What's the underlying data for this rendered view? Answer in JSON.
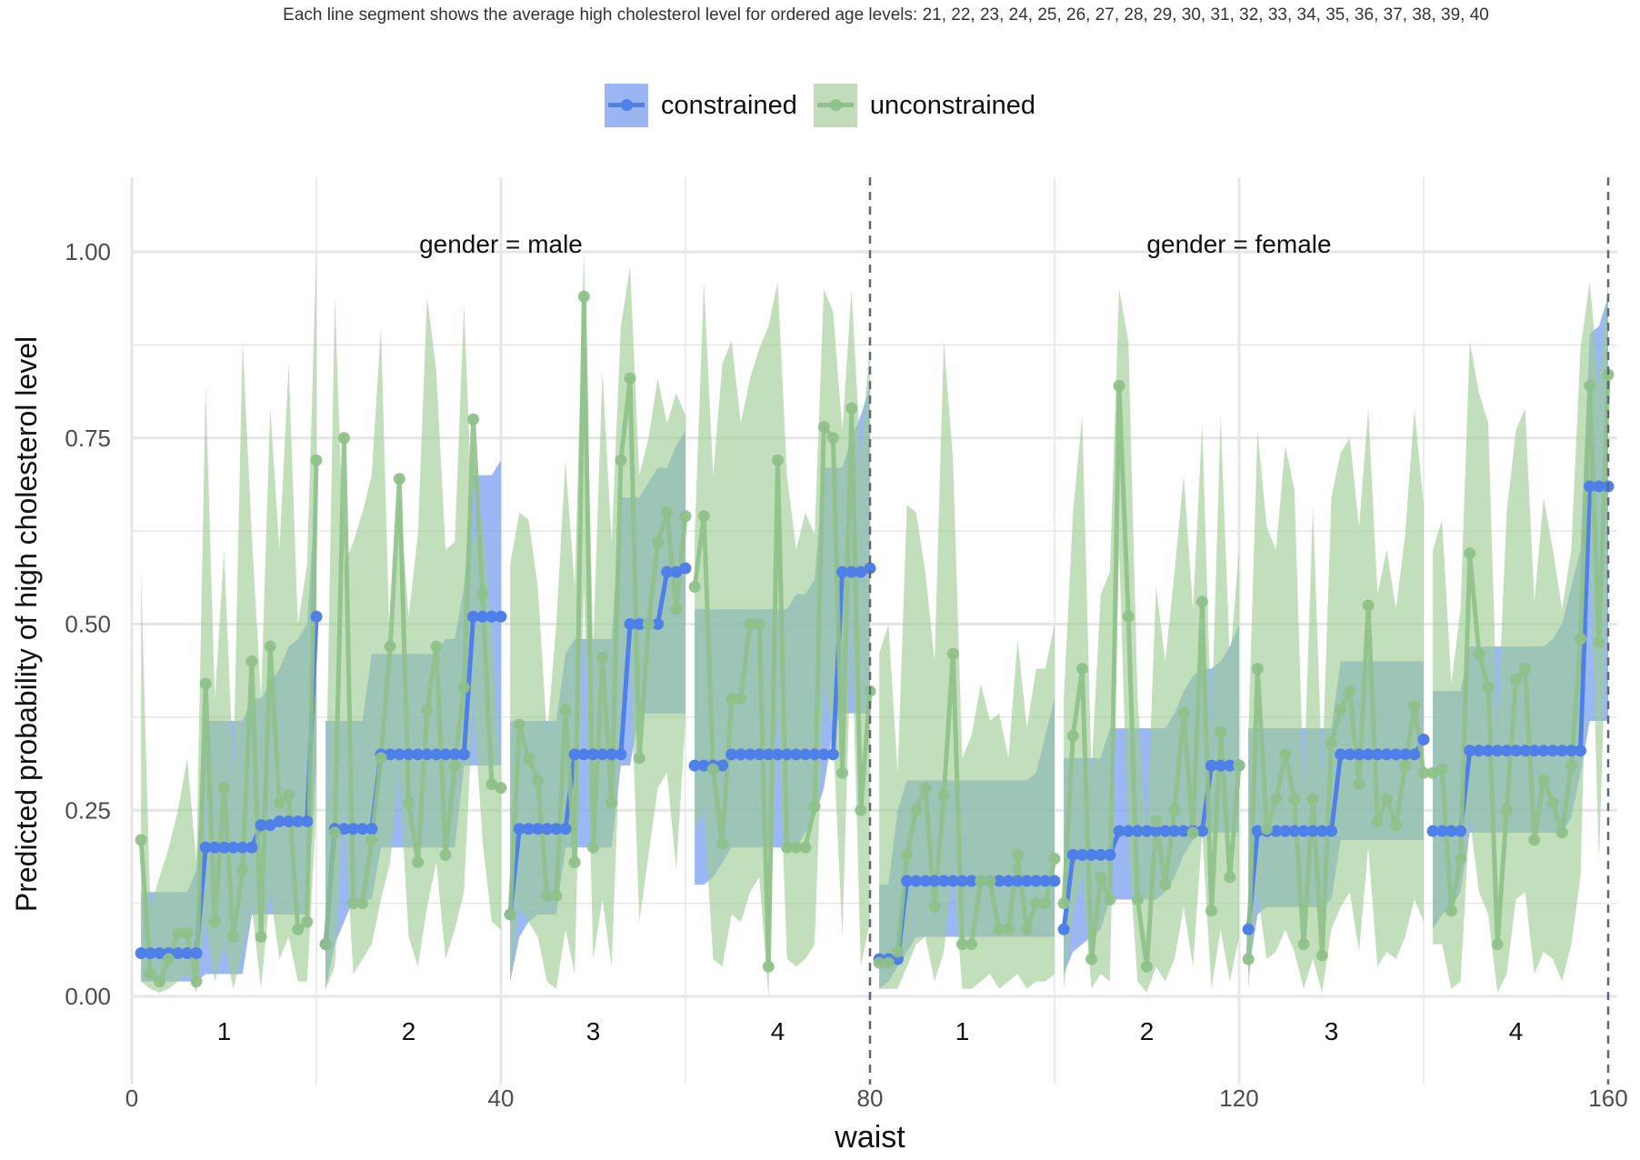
{
  "chart_data": {
    "type": "line",
    "title": "Each line segment shows the average high cholesterol level for ordered age levels: 21, 22, 23, 24, 25, 26, 27, 28, 29, 30, 31, 32, 33, 34, 35, 36, 37, 38, 39, 40",
    "xlabel": "waist",
    "ylabel": "Predicted probability of high cholesterol level",
    "xlim": [
      0,
      160
    ],
    "ylim": [
      -0.1,
      1.1
    ],
    "x_ticks": [
      "0",
      "40",
      "80",
      "120",
      "160"
    ],
    "y_ticks": [
      "0.00",
      "0.25",
      "0.50",
      "0.75",
      "1.00"
    ],
    "grid": true,
    "legend_position": "top",
    "facets": [
      {
        "label": "gender = male",
        "range": [
          0,
          80
        ]
      },
      {
        "label": "gender = female",
        "range": [
          80,
          160
        ]
      }
    ],
    "panel_labels": [
      "1",
      "2",
      "3",
      "4",
      "1",
      "2",
      "3",
      "4"
    ],
    "series": [
      {
        "name": "constrained",
        "color": "#4f7fe8",
        "band_color": "#7a9ff0",
        "values": [
          0.058,
          0.058,
          0.058,
          0.058,
          0.058,
          0.058,
          0.058,
          0.2,
          0.2,
          0.2,
          0.2,
          0.2,
          0.2,
          0.23,
          0.23,
          0.235,
          0.235,
          0.235,
          0.235,
          0.51,
          0.07,
          0.225,
          0.225,
          0.225,
          0.225,
          0.225,
          0.325,
          0.325,
          0.325,
          0.325,
          0.325,
          0.325,
          0.325,
          0.325,
          0.325,
          0.325,
          0.51,
          0.51,
          0.51,
          0.51,
          0.11,
          0.225,
          0.225,
          0.225,
          0.225,
          0.225,
          0.225,
          0.325,
          0.325,
          0.325,
          0.325,
          0.325,
          0.325,
          0.5,
          0.5,
          0.5,
          0.5,
          0.57,
          0.57,
          0.575,
          0.31,
          0.31,
          0.31,
          0.31,
          0.325,
          0.325,
          0.325,
          0.325,
          0.325,
          0.325,
          0.325,
          0.325,
          0.325,
          0.325,
          0.325,
          0.325,
          0.57,
          0.57,
          0.57,
          0.575,
          0.05,
          0.05,
          0.05,
          0.155,
          0.155,
          0.155,
          0.155,
          0.155,
          0.155,
          0.155,
          0.155,
          0.155,
          0.155,
          0.155,
          0.155,
          0.155,
          0.155,
          0.155,
          0.155,
          0.155,
          0.09,
          0.19,
          0.19,
          0.19,
          0.19,
          0.19,
          0.222,
          0.222,
          0.222,
          0.222,
          0.222,
          0.222,
          0.222,
          0.222,
          0.222,
          0.222,
          0.31,
          0.31,
          0.31,
          0.31,
          0.09,
          0.222,
          0.222,
          0.222,
          0.222,
          0.222,
          0.222,
          0.222,
          0.222,
          0.222,
          0.325,
          0.325,
          0.325,
          0.325,
          0.325,
          0.325,
          0.325,
          0.325,
          0.325,
          0.345,
          0.222,
          0.222,
          0.222,
          0.222,
          0.33,
          0.33,
          0.33,
          0.33,
          0.33,
          0.33,
          0.33,
          0.33,
          0.33,
          0.33,
          0.33,
          0.33,
          0.33,
          0.685,
          0.685,
          0.685
        ],
        "lower": [
          0.02,
          0.02,
          0.02,
          0.02,
          0.02,
          0.02,
          0.02,
          0.03,
          0.03,
          0.03,
          0.03,
          0.03,
          0.11,
          0.11,
          0.11,
          0.11,
          0.11,
          0.11,
          0.11,
          0.31,
          0.01,
          0.07,
          0.1,
          0.13,
          0.13,
          0.13,
          0.2,
          0.2,
          0.2,
          0.2,
          0.2,
          0.2,
          0.2,
          0.2,
          0.2,
          0.31,
          0.31,
          0.31,
          0.31,
          0.31,
          0.02,
          0.08,
          0.1,
          0.11,
          0.11,
          0.11,
          0.2,
          0.2,
          0.2,
          0.2,
          0.2,
          0.2,
          0.31,
          0.31,
          0.38,
          0.38,
          0.38,
          0.38,
          0.38,
          0.38,
          0.15,
          0.15,
          0.16,
          0.18,
          0.2,
          0.2,
          0.2,
          0.2,
          0.2,
          0.2,
          0.2,
          0.2,
          0.22,
          0.24,
          0.28,
          0.36,
          0.38,
          0.38,
          0.38,
          0.38,
          0.01,
          0.02,
          0.04,
          0.06,
          0.08,
          0.08,
          0.08,
          0.08,
          0.08,
          0.08,
          0.08,
          0.08,
          0.08,
          0.08,
          0.08,
          0.08,
          0.08,
          0.08,
          0.08,
          0.08,
          0.03,
          0.06,
          0.07,
          0.08,
          0.09,
          0.13,
          0.13,
          0.13,
          0.13,
          0.13,
          0.13,
          0.14,
          0.16,
          0.19,
          0.21,
          0.22,
          0.22,
          0.22,
          0.22,
          0.22,
          0.03,
          0.11,
          0.12,
          0.12,
          0.12,
          0.12,
          0.12,
          0.12,
          0.12,
          0.13,
          0.21,
          0.21,
          0.21,
          0.21,
          0.21,
          0.21,
          0.21,
          0.21,
          0.21,
          0.21,
          0.09,
          0.11,
          0.12,
          0.14,
          0.22,
          0.22,
          0.22,
          0.22,
          0.22,
          0.22,
          0.22,
          0.22,
          0.22,
          0.22,
          0.22,
          0.24,
          0.3,
          0.37,
          0.37,
          0.37
        ],
        "upper": [
          0.14,
          0.14,
          0.14,
          0.14,
          0.14,
          0.14,
          0.17,
          0.37,
          0.37,
          0.37,
          0.37,
          0.37,
          0.4,
          0.4,
          0.42,
          0.44,
          0.47,
          0.48,
          0.5,
          0.7,
          0.37,
          0.37,
          0.37,
          0.37,
          0.37,
          0.46,
          0.46,
          0.46,
          0.46,
          0.46,
          0.46,
          0.46,
          0.46,
          0.48,
          0.48,
          0.55,
          0.7,
          0.7,
          0.7,
          0.72,
          0.37,
          0.37,
          0.37,
          0.37,
          0.37,
          0.37,
          0.46,
          0.48,
          0.48,
          0.48,
          0.48,
          0.48,
          0.67,
          0.67,
          0.67,
          0.69,
          0.71,
          0.71,
          0.74,
          0.76,
          0.52,
          0.52,
          0.52,
          0.52,
          0.52,
          0.52,
          0.52,
          0.52,
          0.52,
          0.52,
          0.52,
          0.54,
          0.54,
          0.56,
          0.71,
          0.71,
          0.71,
          0.75,
          0.78,
          0.82,
          0.15,
          0.15,
          0.25,
          0.29,
          0.29,
          0.29,
          0.29,
          0.29,
          0.29,
          0.29,
          0.29,
          0.29,
          0.29,
          0.29,
          0.29,
          0.29,
          0.29,
          0.3,
          0.35,
          0.4,
          0.32,
          0.32,
          0.32,
          0.32,
          0.32,
          0.36,
          0.36,
          0.36,
          0.36,
          0.36,
          0.36,
          0.36,
          0.38,
          0.41,
          0.43,
          0.44,
          0.44,
          0.45,
          0.47,
          0.5,
          0.36,
          0.36,
          0.36,
          0.36,
          0.36,
          0.36,
          0.36,
          0.36,
          0.36,
          0.36,
          0.45,
          0.45,
          0.45,
          0.45,
          0.45,
          0.45,
          0.45,
          0.45,
          0.45,
          0.45,
          0.41,
          0.41,
          0.41,
          0.41,
          0.47,
          0.47,
          0.47,
          0.47,
          0.47,
          0.47,
          0.47,
          0.47,
          0.47,
          0.48,
          0.5,
          0.55,
          0.6,
          0.89,
          0.9,
          0.94
        ]
      },
      {
        "name": "unconstrained",
        "color": "#8fc18a",
        "band_color": "#9ccb92",
        "values": [
          0.21,
          0.03,
          0.02,
          0.05,
          0.085,
          0.085,
          0.02,
          0.42,
          0.1,
          0.28,
          0.08,
          0.17,
          0.45,
          0.08,
          0.47,
          0.26,
          0.27,
          0.09,
          0.1,
          0.72,
          0.07,
          0.22,
          0.75,
          0.125,
          0.125,
          0.21,
          0.32,
          0.47,
          0.695,
          0.26,
          0.18,
          0.385,
          0.47,
          0.19,
          0.31,
          0.415,
          0.775,
          0.54,
          0.285,
          0.28,
          0.11,
          0.365,
          0.32,
          0.29,
          0.135,
          0.135,
          0.385,
          0.18,
          0.94,
          0.2,
          0.455,
          0.26,
          0.72,
          0.83,
          0.32,
          0.5,
          0.61,
          0.65,
          0.52,
          0.645,
          0.55,
          0.645,
          0.305,
          0.205,
          0.4,
          0.4,
          0.5,
          0.5,
          0.04,
          0.72,
          0.2,
          0.2,
          0.2,
          0.255,
          0.765,
          0.75,
          0.3,
          0.79,
          0.25,
          0.41,
          0.045,
          0.045,
          0.06,
          0.19,
          0.25,
          0.28,
          0.12,
          0.27,
          0.46,
          0.07,
          0.07,
          0.155,
          0.155,
          0.09,
          0.09,
          0.19,
          0.09,
          0.125,
          0.125,
          0.185,
          0.125,
          0.35,
          0.44,
          0.05,
          0.16,
          0.13,
          0.82,
          0.51,
          0.13,
          0.04,
          0.235,
          0.15,
          0.25,
          0.38,
          0.22,
          0.53,
          0.115,
          0.355,
          0.16,
          0.31,
          0.05,
          0.44,
          0.225,
          0.265,
          0.325,
          0.265,
          0.07,
          0.265,
          0.055,
          0.34,
          0.385,
          0.41,
          0.285,
          0.525,
          0.235,
          0.265,
          0.23,
          0.31,
          0.39,
          0.3,
          0.3,
          0.305,
          0.115,
          0.185,
          0.595,
          0.46,
          0.415,
          0.07,
          0.25,
          0.425,
          0.44,
          0.21,
          0.29,
          0.26,
          0.22,
          0.31,
          0.48,
          0.82,
          0.475,
          0.835
        ],
        "lower": [
          0.02,
          0.01,
          0.005,
          0.01,
          0.02,
          0.03,
          0.005,
          0.1,
          0.02,
          0.07,
          0.01,
          0.06,
          0.12,
          0.01,
          0.14,
          0.05,
          0.08,
          0.02,
          0.02,
          0.25,
          0.01,
          0.04,
          0.25,
          0.03,
          0.05,
          0.07,
          0.13,
          0.18,
          0.3,
          0.08,
          0.04,
          0.12,
          0.18,
          0.05,
          0.09,
          0.14,
          0.4,
          0.21,
          0.1,
          0.09,
          0.02,
          0.12,
          0.1,
          0.08,
          0.02,
          0.01,
          0.09,
          0.03,
          0.55,
          0.05,
          0.13,
          0.04,
          0.37,
          0.46,
          0.1,
          0.19,
          0.28,
          0.3,
          0.17,
          0.37,
          0.22,
          0.25,
          0.05,
          0.04,
          0.11,
          0.1,
          0.14,
          0.16,
          0.0,
          0.4,
          0.05,
          0.04,
          0.05,
          0.07,
          0.42,
          0.35,
          0.08,
          0.5,
          0.04,
          0.1,
          0.01,
          0.01,
          0.01,
          0.04,
          0.07,
          0.08,
          0.02,
          0.06,
          0.17,
          0.01,
          0.01,
          0.02,
          0.03,
          0.01,
          0.02,
          0.03,
          0.01,
          0.02,
          0.02,
          0.03,
          0.01,
          0.11,
          0.16,
          0.01,
          0.03,
          0.02,
          0.6,
          0.2,
          0.02,
          0.005,
          0.04,
          0.02,
          0.05,
          0.12,
          0.04,
          0.22,
          0.01,
          0.09,
          0.02,
          0.08,
          0.01,
          0.14,
          0.05,
          0.06,
          0.09,
          0.06,
          0.01,
          0.05,
          0.005,
          0.09,
          0.12,
          0.14,
          0.06,
          0.2,
          0.04,
          0.06,
          0.05,
          0.08,
          0.13,
          0.1,
          0.07,
          0.07,
          0.01,
          0.02,
          0.24,
          0.14,
          0.11,
          0.005,
          0.03,
          0.13,
          0.14,
          0.03,
          0.06,
          0.05,
          0.02,
          0.07,
          0.16,
          0.62,
          0.18,
          0.58
        ],
        "upper": [
          0.57,
          0.12,
          0.16,
          0.2,
          0.25,
          0.32,
          0.18,
          0.82,
          0.4,
          0.6,
          0.3,
          0.88,
          0.62,
          0.4,
          0.79,
          0.6,
          0.85,
          0.5,
          0.58,
          1.0,
          0.25,
          0.94,
          0.58,
          0.61,
          0.65,
          0.7,
          0.9,
          0.45,
          0.68,
          0.51,
          0.62,
          0.94,
          0.84,
          0.6,
          0.61,
          0.93,
          0.61,
          0.64,
          0.5,
          0.3,
          0.58,
          0.65,
          0.64,
          0.55,
          0.35,
          0.5,
          0.72,
          0.55,
          1.0,
          0.47,
          0.84,
          0.61,
          0.9,
          0.98,
          0.7,
          0.75,
          0.83,
          0.77,
          0.81,
          0.78,
          0.62,
          0.96,
          0.7,
          0.85,
          0.88,
          0.77,
          0.83,
          0.87,
          0.9,
          0.96,
          0.7,
          0.6,
          0.65,
          0.62,
          0.95,
          0.92,
          0.76,
          0.95,
          0.72,
          0.88,
          0.46,
          0.5,
          0.3,
          0.66,
          0.65,
          0.57,
          0.45,
          0.88,
          0.72,
          0.32,
          0.35,
          0.42,
          0.37,
          0.38,
          0.32,
          0.48,
          0.36,
          0.44,
          0.44,
          0.5,
          0.4,
          0.65,
          0.78,
          0.3,
          0.54,
          0.57,
          0.95,
          0.88,
          0.4,
          0.22,
          0.55,
          0.45,
          0.57,
          0.7,
          0.52,
          0.77,
          0.36,
          0.78,
          0.45,
          0.6,
          0.35,
          0.76,
          0.63,
          0.6,
          0.74,
          0.68,
          0.28,
          0.66,
          0.3,
          0.67,
          0.73,
          0.75,
          0.63,
          0.79,
          0.54,
          0.6,
          0.52,
          0.62,
          0.79,
          0.66,
          0.6,
          0.64,
          0.42,
          0.52,
          0.88,
          0.81,
          0.77,
          0.36,
          0.65,
          0.76,
          0.79,
          0.53,
          0.67,
          0.6,
          0.52,
          0.6,
          0.87,
          0.96,
          0.82,
          0.96
        ]
      }
    ]
  }
}
